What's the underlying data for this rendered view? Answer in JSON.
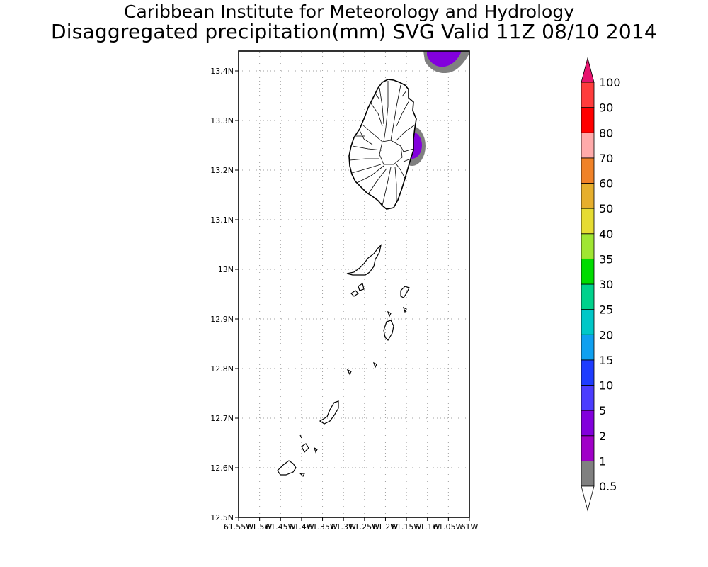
{
  "header": {
    "institute": "Caribbean Institute for Meteorology and Hydrology",
    "product": "Disaggregated precipitation(mm) SVG Valid 11Z 08/10 2014"
  },
  "map": {
    "lat_range": [
      12.5,
      13.44
    ],
    "lon_range": [
      -61.55,
      -61.0
    ],
    "lat_labels": [
      "12.5N",
      "12.6N",
      "12.7N",
      "12.8N",
      "12.9N",
      "13N",
      "13.1N",
      "13.2N",
      "13.3N",
      "13.4N"
    ],
    "lon_labels": [
      "61.55W",
      "61.5W",
      "61.45W",
      "61.4W",
      "61.35W",
      "61.3W",
      "61.25W",
      "61.2W",
      "61.15W",
      "61.1W",
      "61.05W",
      "61W"
    ],
    "grid": "dotted"
  },
  "legend": {
    "levels": [
      "0.5",
      "1",
      "2",
      "5",
      "10",
      "15",
      "20",
      "25",
      "30",
      "35",
      "40",
      "50",
      "60",
      "70",
      "80",
      "90",
      "100"
    ],
    "colors": [
      "#808080",
      "#a000c8",
      "#8200dc",
      "#4b3cff",
      "#1e3cff",
      "#0fa0f0",
      "#00c8c8",
      "#00d28c",
      "#00dc00",
      "#a0e632",
      "#e6dc32",
      "#e6af2d",
      "#f08228",
      "#ffaaaa",
      "#ff0000",
      "#ff3c3c",
      "#e6146e"
    ],
    "under_color": "#ffffff",
    "over_color": "#e6146e"
  }
}
